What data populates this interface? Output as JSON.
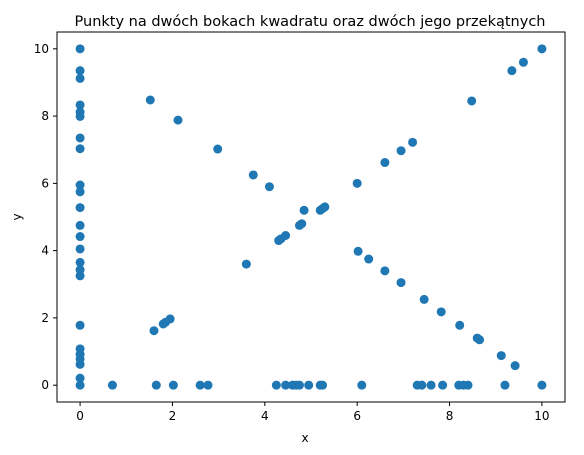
{
  "chart_data": {
    "type": "scatter",
    "title": "Punkty na dwóch bokach kwadratu oraz dwóch jego przekątnych",
    "xlabel": "x",
    "ylabel": "y",
    "xlim": [
      -0.5,
      10.5
    ],
    "ylim": [
      -0.5,
      10.5
    ],
    "xticks": [
      0,
      2,
      4,
      6,
      8,
      10
    ],
    "yticks": [
      0,
      2,
      4,
      6,
      8,
      10
    ],
    "grid": false,
    "marker_color": "#1f77b4",
    "points": [
      [
        0,
        10
      ],
      [
        0,
        9.35
      ],
      [
        0,
        9.12
      ],
      [
        0,
        8.33
      ],
      [
        0,
        8.12
      ],
      [
        0,
        7.99
      ],
      [
        0,
        7.35
      ],
      [
        0,
        7.03
      ],
      [
        0,
        5.95
      ],
      [
        0,
        5.75
      ],
      [
        0,
        5.28
      ],
      [
        0,
        4.75
      ],
      [
        0,
        4.42
      ],
      [
        0,
        4.05
      ],
      [
        0,
        3.65
      ],
      [
        0,
        3.43
      ],
      [
        0,
        3.25
      ],
      [
        0,
        1.78
      ],
      [
        0,
        1.08
      ],
      [
        0,
        0.92
      ],
      [
        0,
        0.78
      ],
      [
        0,
        0.62
      ],
      [
        0,
        0.21
      ],
      [
        0,
        0
      ],
      [
        0.7,
        0
      ],
      [
        1.65,
        0
      ],
      [
        2.02,
        0
      ],
      [
        2.6,
        0
      ],
      [
        2.77,
        0
      ],
      [
        4.25,
        0
      ],
      [
        4.45,
        0
      ],
      [
        4.6,
        0
      ],
      [
        4.68,
        0
      ],
      [
        4.75,
        0
      ],
      [
        4.95,
        0
      ],
      [
        5.2,
        0
      ],
      [
        5.25,
        0
      ],
      [
        6.1,
        0
      ],
      [
        7.3,
        0
      ],
      [
        7.4,
        0
      ],
      [
        7.6,
        0
      ],
      [
        7.85,
        0
      ],
      [
        8.2,
        0
      ],
      [
        8.3,
        0
      ],
      [
        8.4,
        0
      ],
      [
        9.2,
        0
      ],
      [
        10,
        0
      ],
      [
        1.6,
        1.62
      ],
      [
        1.8,
        1.82
      ],
      [
        1.85,
        1.87
      ],
      [
        1.95,
        1.97
      ],
      [
        3.75,
        6.25
      ],
      [
        4.3,
        4.3
      ],
      [
        4.35,
        4.35
      ],
      [
        4.45,
        4.45
      ],
      [
        4.75,
        4.75
      ],
      [
        4.8,
        4.8
      ],
      [
        4.85,
        5.2
      ],
      [
        5.2,
        5.2
      ],
      [
        5.25,
        5.25
      ],
      [
        5.3,
        5.3
      ],
      [
        6.0,
        6.0
      ],
      [
        6.6,
        6.62
      ],
      [
        6.95,
        6.97
      ],
      [
        7.2,
        7.22
      ],
      [
        9.35,
        9.35
      ],
      [
        9.6,
        9.6
      ],
      [
        10,
        10
      ],
      [
        1.52,
        8.48
      ],
      [
        2.12,
        7.88
      ],
      [
        2.98,
        7.02
      ],
      [
        4.1,
        5.9
      ],
      [
        3.6,
        3.6
      ],
      [
        6.02,
        3.98
      ],
      [
        6.25,
        3.75
      ],
      [
        6.6,
        3.4
      ],
      [
        6.95,
        3.05
      ],
      [
        7.45,
        2.55
      ],
      [
        7.82,
        2.18
      ],
      [
        8.22,
        1.78
      ],
      [
        8.6,
        1.4
      ],
      [
        8.65,
        1.35
      ],
      [
        9.12,
        0.88
      ],
      [
        9.42,
        0.58
      ],
      [
        8.48,
        8.45
      ]
    ]
  }
}
